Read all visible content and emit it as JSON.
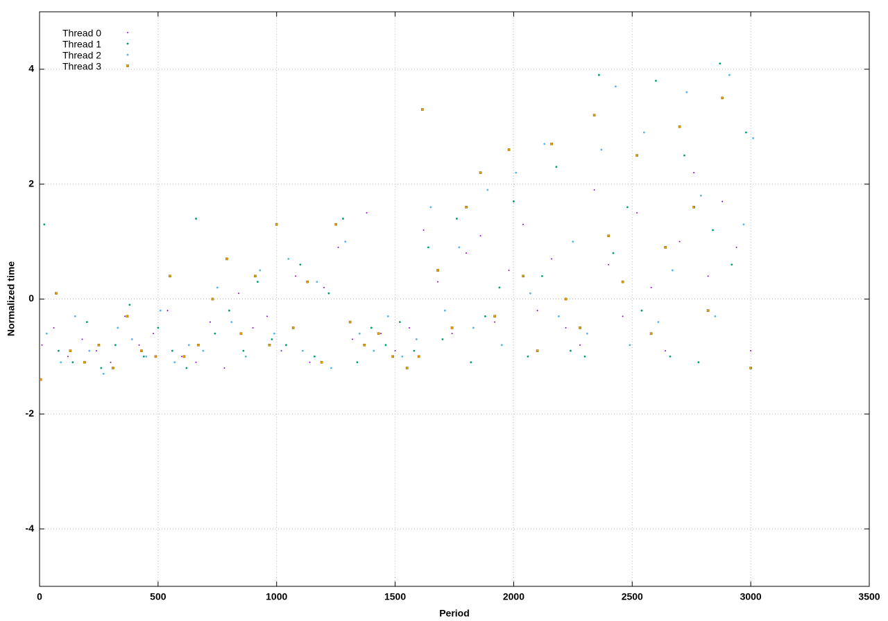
{
  "chart_data": {
    "type": "scatter",
    "x_label": "Period",
    "y_label": "Normalized time",
    "xlim": [
      0,
      3500
    ],
    "xticks": [
      0,
      500,
      1000,
      1500,
      2000,
      2500,
      3000,
      3500
    ],
    "ylim": [
      -5,
      5
    ],
    "yticks": [
      -4,
      -2,
      0,
      2,
      4
    ],
    "grid": true,
    "legend": "top-left",
    "series": [
      {
        "name": "Thread 0",
        "color": "#9400d3",
        "marker": "dot",
        "x": [
          10,
          60,
          120,
          180,
          240,
          300,
          360,
          420,
          480,
          540,
          600,
          660,
          720,
          780,
          840,
          900,
          960,
          1020,
          1080,
          1140,
          1200,
          1260,
          1320,
          1380,
          1440,
          1500,
          1560,
          1620,
          1680,
          1740,
          1800,
          1860,
          1920,
          1980,
          2040,
          2100,
          2160,
          2220,
          2280,
          2340,
          2400,
          2460,
          2520,
          2580,
          2640,
          2700,
          2760,
          2820,
          2880,
          2940,
          3000
        ],
        "values": [
          -0.8,
          -0.5,
          -1.0,
          -0.7,
          -0.9,
          -1.1,
          -0.3,
          -0.8,
          -0.6,
          -0.2,
          -1.0,
          -1.1,
          -0.4,
          -1.2,
          0.1,
          -0.5,
          -0.3,
          -0.9,
          0.4,
          -1.1,
          0.2,
          0.9,
          -0.7,
          1.5,
          -0.6,
          -0.9,
          -0.5,
          1.2,
          0.3,
          -0.6,
          0.8,
          1.1,
          -0.4,
          0.5,
          1.3,
          -0.2,
          0.7,
          -0.5,
          -0.8,
          1.9,
          0.6,
          -0.3,
          1.5,
          0.2,
          -0.9,
          1.0,
          2.2,
          0.4,
          1.7,
          0.9,
          -0.9
        ]
      },
      {
        "name": "Thread 1",
        "color": "#009e73",
        "marker": "circle",
        "x": [
          20,
          80,
          140,
          200,
          260,
          320,
          380,
          440,
          500,
          560,
          620,
          660,
          740,
          800,
          860,
          920,
          980,
          1040,
          1100,
          1160,
          1220,
          1280,
          1340,
          1400,
          1460,
          1520,
          1580,
          1640,
          1700,
          1760,
          1820,
          1880,
          1940,
          2000,
          2060,
          2120,
          2180,
          2240,
          2300,
          2360,
          2420,
          2480,
          2540,
          2600,
          2660,
          2720,
          2780,
          2840,
          2870,
          2920,
          2980
        ],
        "values": [
          1.3,
          -0.9,
          -1.1,
          -0.4,
          -1.2,
          -0.8,
          -0.1,
          -1.0,
          -0.5,
          -0.9,
          -1.2,
          1.4,
          -0.6,
          -0.2,
          -0.9,
          0.3,
          -0.7,
          -0.8,
          0.6,
          -1.0,
          0.1,
          1.4,
          -1.1,
          -0.5,
          -0.8,
          -0.4,
          -0.9,
          0.9,
          -0.7,
          1.4,
          -1.1,
          -0.3,
          0.2,
          1.7,
          -1.0,
          0.4,
          2.3,
          -0.9,
          -1.0,
          3.9,
          0.8,
          1.6,
          -0.2,
          3.8,
          -1.0,
          2.5,
          -1.1,
          1.2,
          4.1,
          0.6,
          2.9
        ]
      },
      {
        "name": "Thread 2",
        "color": "#56b4e9",
        "marker": "circle",
        "x": [
          30,
          90,
          150,
          210,
          270,
          330,
          390,
          450,
          510,
          570,
          630,
          690,
          750,
          810,
          870,
          930,
          990,
          1050,
          1110,
          1170,
          1230,
          1290,
          1350,
          1410,
          1470,
          1530,
          1590,
          1650,
          1710,
          1770,
          1830,
          1890,
          1950,
          2010,
          2070,
          2130,
          2190,
          2250,
          2310,
          2370,
          2430,
          2490,
          2550,
          2610,
          2670,
          2730,
          2790,
          2850,
          2910,
          2970,
          3010
        ],
        "values": [
          -0.6,
          -1.1,
          -0.3,
          -0.9,
          -1.3,
          -0.5,
          -0.7,
          -1.0,
          -0.2,
          -1.1,
          -0.8,
          -0.9,
          0.2,
          -0.4,
          -1.0,
          0.5,
          -0.6,
          0.7,
          -0.9,
          0.3,
          -1.2,
          1.0,
          -0.6,
          -0.9,
          -0.3,
          -1.0,
          -0.7,
          1.6,
          -0.2,
          0.9,
          -0.5,
          1.9,
          -0.8,
          2.2,
          0.1,
          2.7,
          -0.3,
          1.0,
          -0.6,
          2.6,
          3.7,
          -0.8,
          2.9,
          -0.4,
          0.5,
          3.6,
          1.8,
          -0.3,
          3.9,
          1.3,
          2.8
        ]
      },
      {
        "name": "Thread 3",
        "color": "#e69f00",
        "marker": "square",
        "x": [
          5,
          70,
          130,
          190,
          250,
          310,
          370,
          430,
          490,
          550,
          610,
          670,
          730,
          790,
          850,
          910,
          970,
          1000,
          1070,
          1130,
          1190,
          1250,
          1310,
          1370,
          1430,
          1490,
          1550,
          1600,
          1615,
          1680,
          1740,
          1800,
          1860,
          1920,
          1980,
          2040,
          2100,
          2160,
          2220,
          2280,
          2340,
          2400,
          2460,
          2520,
          2580,
          2640,
          2700,
          2760,
          2820,
          2880,
          3000
        ],
        "values": [
          -1.4,
          0.1,
          -0.9,
          -1.1,
          -0.8,
          -1.2,
          -0.3,
          -0.9,
          -1.0,
          0.4,
          -1.0,
          -0.8,
          0.0,
          0.7,
          -0.6,
          0.4,
          -0.8,
          1.3,
          -0.5,
          0.3,
          -1.1,
          1.3,
          -0.4,
          -0.8,
          -0.6,
          -1.0,
          -1.2,
          -1.0,
          3.3,
          0.5,
          -0.5,
          1.6,
          2.2,
          -0.3,
          2.6,
          0.4,
          -0.9,
          2.7,
          0.0,
          -0.5,
          3.2,
          1.1,
          0.3,
          2.5,
          -0.6,
          0.9,
          3.0,
          1.6,
          -0.2,
          3.5,
          -1.2
        ]
      }
    ]
  }
}
